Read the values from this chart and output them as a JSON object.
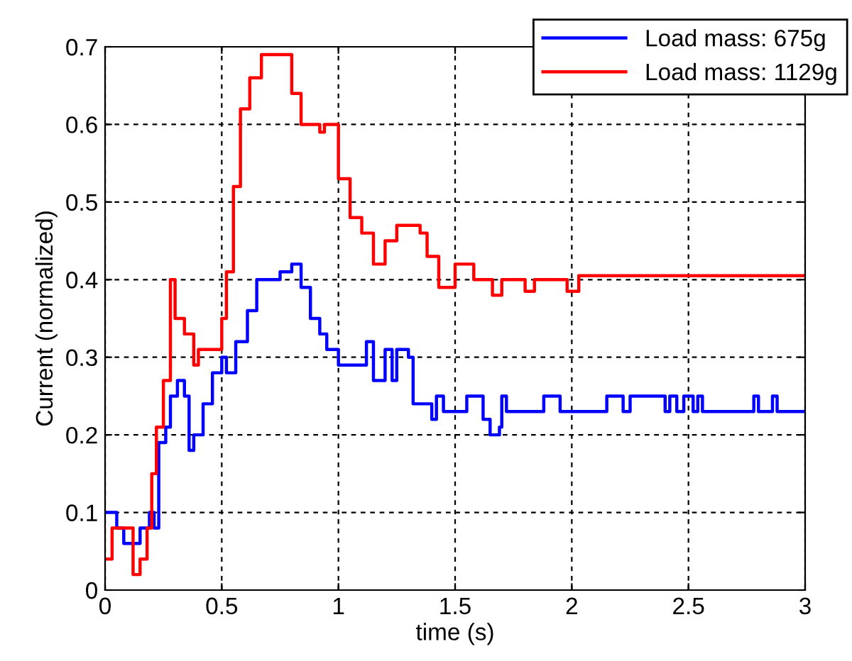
{
  "chart_data": {
    "type": "step",
    "xlabel": "time (s)",
    "ylabel": "Current (normalized)",
    "xlim": [
      0,
      3
    ],
    "ylim": [
      0,
      0.7
    ],
    "xticks": [
      0,
      0.5,
      1,
      1.5,
      2,
      2.5,
      3
    ],
    "yticks": [
      0,
      0.1,
      0.2,
      0.3,
      0.4,
      0.5,
      0.6,
      0.7
    ],
    "grid": true,
    "legend": "top right",
    "line_style": "solid",
    "marker": "none",
    "series": [
      {
        "name": "Load mass: 675g",
        "color": "#0000ff",
        "x": [
          0,
          0.05,
          0.08,
          0.15,
          0.19,
          0.21,
          0.23,
          0.26,
          0.28,
          0.31,
          0.34,
          0.36,
          0.38,
          0.42,
          0.46,
          0.5,
          0.52,
          0.56,
          0.61,
          0.65,
          0.75,
          0.8,
          0.84,
          0.88,
          0.92,
          0.95,
          1.0,
          1.1,
          1.12,
          1.15,
          1.2,
          1.23,
          1.25,
          1.3,
          1.32,
          1.4,
          1.42,
          1.45,
          1.55,
          1.62,
          1.65,
          1.69,
          1.7,
          1.72,
          1.88,
          1.95,
          2.15,
          2.22,
          2.25,
          2.4,
          2.42,
          2.45,
          2.48,
          2.52,
          2.54,
          2.56,
          2.75,
          2.78,
          2.8,
          2.86,
          2.88,
          3.0
        ],
        "values": [
          0.1,
          0.08,
          0.06,
          0.08,
          0.1,
          0.08,
          0.19,
          0.21,
          0.25,
          0.27,
          0.25,
          0.18,
          0.2,
          0.24,
          0.28,
          0.3,
          0.28,
          0.32,
          0.36,
          0.4,
          0.41,
          0.42,
          0.39,
          0.35,
          0.33,
          0.31,
          0.29,
          0.29,
          0.32,
          0.27,
          0.31,
          0.27,
          0.31,
          0.3,
          0.24,
          0.22,
          0.25,
          0.23,
          0.25,
          0.22,
          0.2,
          0.21,
          0.25,
          0.23,
          0.25,
          0.23,
          0.25,
          0.23,
          0.25,
          0.23,
          0.25,
          0.23,
          0.25,
          0.23,
          0.25,
          0.23,
          0.23,
          0.25,
          0.23,
          0.25,
          0.23,
          0.23
        ]
      },
      {
        "name": "Load mass: 1129g",
        "color": "#ff0000",
        "x": [
          0,
          0.03,
          0.12,
          0.15,
          0.18,
          0.2,
          0.22,
          0.25,
          0.28,
          0.3,
          0.34,
          0.38,
          0.4,
          0.43,
          0.5,
          0.52,
          0.55,
          0.58,
          0.62,
          0.67,
          0.71,
          0.8,
          0.84,
          0.92,
          0.94,
          1.0,
          1.05,
          1.1,
          1.15,
          1.2,
          1.25,
          1.35,
          1.38,
          1.43,
          1.5,
          1.58,
          1.66,
          1.7,
          1.8,
          1.84,
          1.98,
          2.03,
          3.0
        ],
        "values": [
          0.04,
          0.08,
          0.02,
          0.04,
          0.08,
          0.15,
          0.21,
          0.27,
          0.4,
          0.35,
          0.33,
          0.29,
          0.31,
          0.31,
          0.35,
          0.41,
          0.52,
          0.62,
          0.66,
          0.69,
          0.69,
          0.64,
          0.6,
          0.59,
          0.6,
          0.53,
          0.48,
          0.46,
          0.42,
          0.45,
          0.47,
          0.46,
          0.43,
          0.39,
          0.42,
          0.4,
          0.38,
          0.4,
          0.385,
          0.4,
          0.385,
          0.405,
          0.405
        ]
      }
    ]
  }
}
